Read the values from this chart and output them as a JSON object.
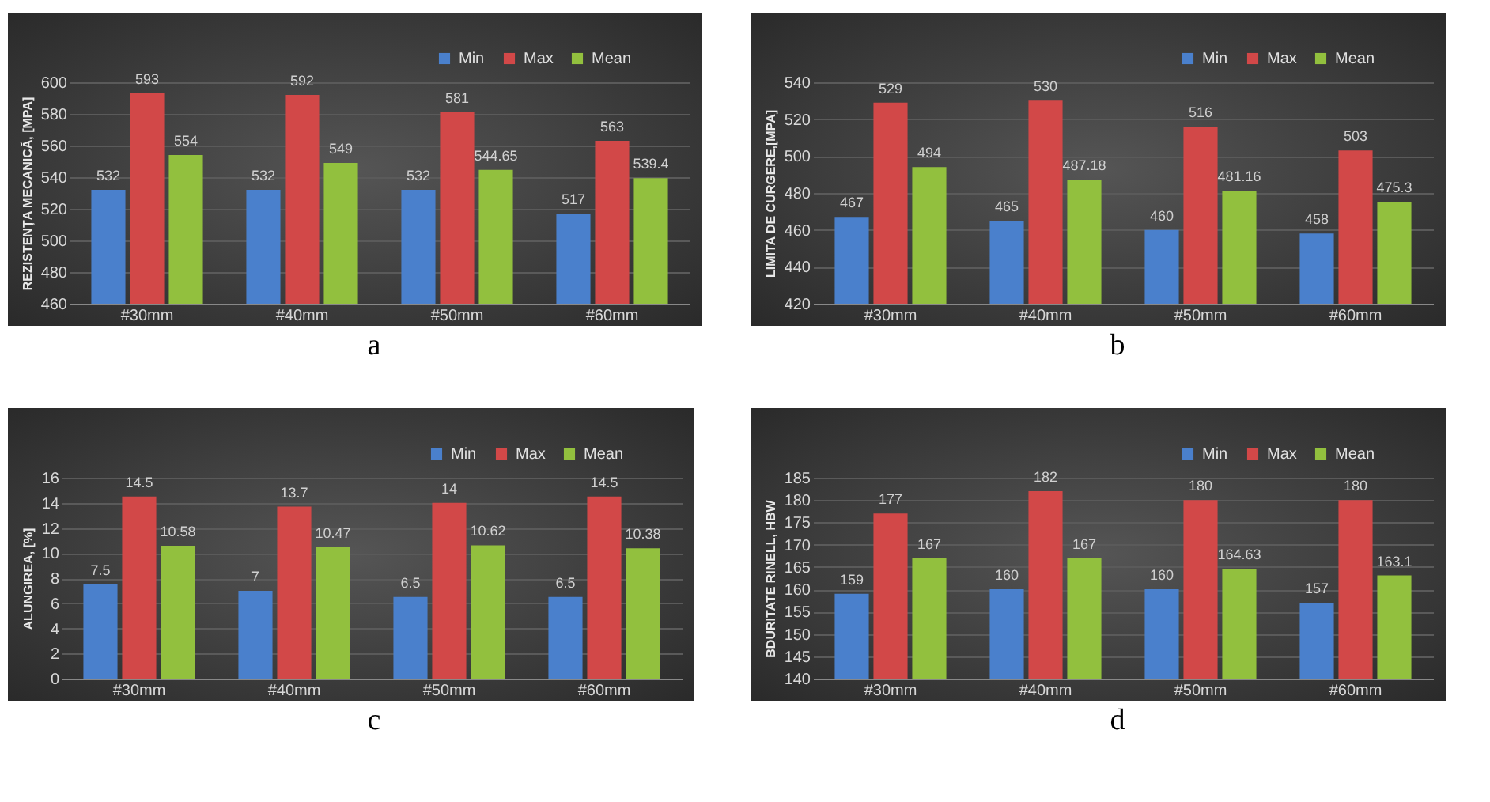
{
  "chart_data": [
    {
      "type": "bar",
      "title": "a",
      "ylabel": "REZISTENȚA MECANICĂ, [MPA]",
      "categories": [
        "#30mm",
        "#40mm",
        "#50mm",
        "#60mm"
      ],
      "series": [
        {
          "name": "Min",
          "color": "#4a80cc",
          "values": [
            532,
            532,
            532,
            517
          ]
        },
        {
          "name": "Max",
          "color": "#d24848",
          "values": [
            593,
            592,
            581,
            563
          ]
        },
        {
          "name": "Mean",
          "color": "#92c03e",
          "values": [
            554,
            549,
            544.65,
            539.4
          ]
        }
      ],
      "ylim": [
        460,
        600
      ],
      "yticks": [
        460,
        480,
        500,
        520,
        540,
        560,
        580,
        600
      ],
      "grid": "y",
      "legend": "top right",
      "data_labels": true
    },
    {
      "type": "bar",
      "title": "b",
      "ylabel": "LIMITA DE CURGERE,[MPA]",
      "categories": [
        "#30mm",
        "#40mm",
        "#50mm",
        "#60mm"
      ],
      "series": [
        {
          "name": "Min",
          "color": "#4a80cc",
          "values": [
            467,
            465,
            460,
            458
          ]
        },
        {
          "name": "Max",
          "color": "#d24848",
          "values": [
            529,
            530,
            516,
            503
          ]
        },
        {
          "name": "Mean",
          "color": "#92c03e",
          "values": [
            494,
            487.18,
            481.16,
            475.3
          ]
        }
      ],
      "ylim": [
        420,
        540
      ],
      "yticks": [
        420,
        440,
        460,
        480,
        500,
        520,
        540
      ],
      "grid": "y",
      "legend": "top right",
      "data_labels": true
    },
    {
      "type": "bar",
      "title": "c",
      "ylabel": "ALUNGIREA, [%]",
      "categories": [
        "#30mm",
        "#40mm",
        "#50mm",
        "#60mm"
      ],
      "series": [
        {
          "name": "Min",
          "color": "#4a80cc",
          "values": [
            7.5,
            7,
            6.5,
            6.5
          ]
        },
        {
          "name": "Max",
          "color": "#d24848",
          "values": [
            14.5,
            13.7,
            14,
            14.5
          ]
        },
        {
          "name": "Mean",
          "color": "#92c03e",
          "values": [
            10.58,
            10.47,
            10.62,
            10.38
          ]
        }
      ],
      "ylim": [
        0,
        16
      ],
      "yticks": [
        0,
        2,
        4,
        6,
        8,
        10,
        12,
        14,
        16
      ],
      "grid": "y",
      "legend": "top right",
      "data_labels": true
    },
    {
      "type": "bar",
      "title": "d",
      "ylabel": "BDURITATE RINELL, HBW",
      "categories": [
        "#30mm",
        "#40mm",
        "#50mm",
        "#60mm"
      ],
      "series": [
        {
          "name": "Min",
          "color": "#4a80cc",
          "values": [
            159,
            160,
            160,
            157
          ]
        },
        {
          "name": "Max",
          "color": "#d24848",
          "values": [
            177,
            182,
            180,
            180
          ]
        },
        {
          "name": "Mean",
          "color": "#92c03e",
          "values": [
            167,
            167,
            164.63,
            163.1
          ]
        }
      ],
      "ylim": [
        140,
        185
      ],
      "yticks": [
        140,
        145,
        150,
        155,
        160,
        165,
        170,
        175,
        180,
        185
      ],
      "grid": "y",
      "legend": "top right",
      "data_labels": true
    }
  ]
}
